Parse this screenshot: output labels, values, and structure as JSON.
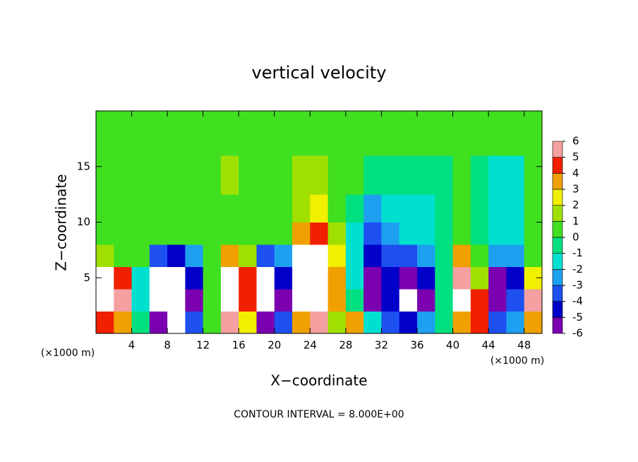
{
  "chart_data": {
    "type": "heatmap",
    "title": "vertical velocity",
    "x_label": "X−coordinate",
    "y_label": "Z−coordinate",
    "x_unit_left": "(×1000 m)",
    "x_unit_right": "(×1000 m)",
    "footer": "CONTOUR INTERVAL = 8.000E+00",
    "xlim": [
      0,
      50
    ],
    "ylim": [
      0,
      20
    ],
    "xticks": [
      4,
      8,
      12,
      16,
      20,
      24,
      28,
      32,
      36,
      40,
      44,
      48
    ],
    "yticks": [
      5,
      10,
      15
    ],
    "x": [
      1,
      3,
      5,
      7,
      9,
      11,
      13,
      15,
      17,
      19,
      21,
      23,
      25,
      27,
      29,
      31,
      33,
      35,
      37,
      39,
      41,
      43,
      45,
      47,
      49
    ],
    "y": [
      1,
      3,
      5,
      7,
      9,
      11,
      14,
      18
    ],
    "z": [
      [
        5,
        4,
        0,
        -5,
        -7,
        -3,
        0.5,
        6,
        3,
        -5,
        -3,
        4,
        6,
        2,
        4,
        -1,
        -3,
        -4,
        -2,
        0,
        4,
        5,
        -3,
        -2,
        4
      ],
      [
        8,
        6,
        -1,
        -8,
        -8,
        -5,
        1,
        8,
        5,
        -8,
        -5,
        7,
        9,
        4,
        0,
        -5,
        -4,
        -7,
        -5,
        0,
        7,
        5,
        -6,
        -3,
        6
      ],
      [
        7,
        5,
        -1,
        -7,
        -7,
        -4,
        1,
        9,
        5,
        -7,
        -4,
        8,
        10,
        4,
        -1,
        -6,
        -4,
        -6,
        -4,
        -0.5,
        6,
        2,
        -5,
        -4,
        3
      ],
      [
        2,
        1,
        0.3,
        -3,
        -4,
        -2,
        0.5,
        4,
        2,
        -3,
        -2,
        7,
        8,
        3,
        -1.5,
        -4,
        -3,
        -3,
        -2,
        0,
        4,
        1,
        -2,
        -2,
        1
      ],
      [
        0.5,
        0.3,
        0.3,
        0.5,
        0.5,
        0.3,
        0.5,
        1,
        0.5,
        0.5,
        0.5,
        4,
        5,
        2,
        -1,
        -3,
        -2,
        -1.5,
        -1,
        -0.5,
        1,
        0,
        -1.5,
        -1,
        0.5
      ],
      [
        0.5,
        0.5,
        0.5,
        0.5,
        0.5,
        0.5,
        0.5,
        1,
        0.5,
        0.5,
        0.8,
        2,
        3,
        1,
        0,
        -2,
        -1.5,
        -1,
        -1,
        -0.5,
        0.3,
        0,
        -1.5,
        -1,
        0.3
      ],
      [
        0.5,
        0.5,
        0.5,
        0.5,
        0.5,
        0.5,
        0.8,
        1.5,
        1,
        0.8,
        1,
        1.5,
        1.5,
        0.8,
        0.3,
        -0.5,
        -0.5,
        -0.3,
        0,
        -0.5,
        0.3,
        0,
        -1,
        -1,
        0.3
      ],
      [
        0.7,
        0.7,
        0.7,
        0.8,
        0.8,
        0.8,
        1,
        1,
        1,
        1,
        1,
        1,
        1,
        0.8,
        0.5,
        0.3,
        0.3,
        0.3,
        0.5,
        0.5,
        0.5,
        0.5,
        0.3,
        0.3,
        0.5
      ]
    ],
    "colorbar": {
      "ticks": [
        -6,
        -5,
        -4,
        -3,
        -2,
        -1,
        0,
        1,
        2,
        3,
        4,
        5,
        6
      ],
      "colors": [
        "#7a00b0",
        "#0000c8",
        "#1e50f0",
        "#1ea0f0",
        "#00e0d0",
        "#00e080",
        "#40e020",
        "#a0e000",
        "#f0f000",
        "#f0a000",
        "#f02000",
        "#f4a0a0"
      ],
      "out_of_range_color": "#ffffff"
    }
  }
}
